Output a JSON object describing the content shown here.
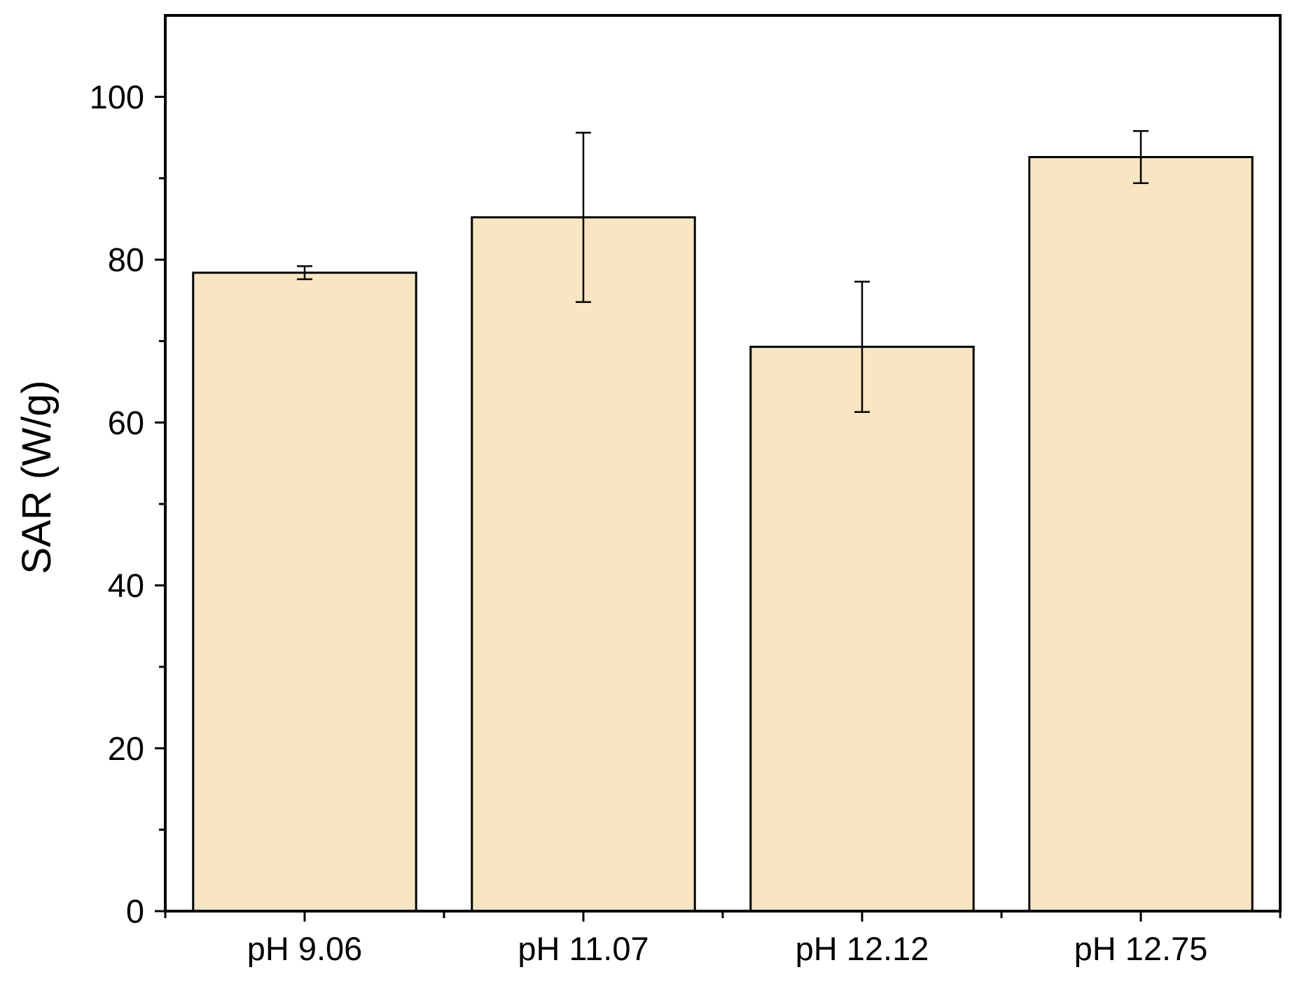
{
  "chart_data": {
    "type": "bar",
    "title": "",
    "xlabel": "",
    "ylabel": "SAR (W/g)",
    "categories": [
      "pH 9.06",
      "pH 11.07",
      "pH 12.12",
      "pH 12.75"
    ],
    "values": [
      78.4,
      85.2,
      69.3,
      92.6
    ],
    "error_bars": [
      {
        "low": 77.6,
        "high": 79.2
      },
      {
        "low": 74.8,
        "high": 95.6
      },
      {
        "low": 61.3,
        "high": 77.3
      },
      {
        "low": 89.4,
        "high": 95.8
      }
    ],
    "ylim": [
      0,
      110
    ],
    "y_major_ticks": [
      0,
      20,
      40,
      60,
      80,
      100
    ],
    "y_tick_labels": [
      "0",
      "20",
      "40",
      "60",
      "80",
      "100"
    ],
    "y_minor_ticks": [
      10,
      30,
      50,
      70,
      90
    ],
    "grid": false,
    "legend": "none",
    "colors": {
      "bar_fill": "#F7E6C1",
      "bar_stroke": "#000000",
      "axis": "#000000",
      "error_bar": "#000000"
    }
  }
}
